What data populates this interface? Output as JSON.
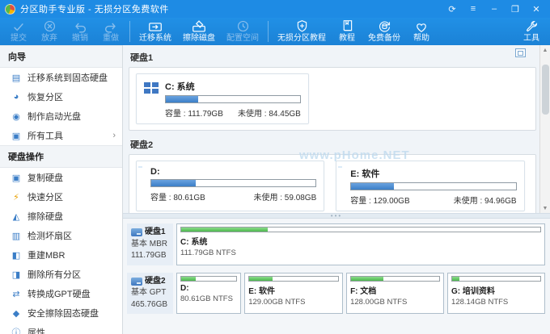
{
  "window": {
    "title": "分区助手专业版 - 无损分区免费软件",
    "controls": {
      "refresh": "⟳",
      "menu": "≡",
      "minimize": "–",
      "maximize": "❐",
      "close": "✕"
    }
  },
  "toolbar": {
    "items": [
      {
        "label": "提交"
      },
      {
        "label": "放弃"
      },
      {
        "label": "撤销"
      },
      {
        "label": "重做"
      },
      {
        "label": "迁移系统"
      },
      {
        "label": "擦除磁盘"
      },
      {
        "label": "配置空间"
      },
      {
        "label": "无损分区教程"
      },
      {
        "label": "教程"
      },
      {
        "label": "免费备份"
      },
      {
        "label": "帮助"
      },
      {
        "label": "工具"
      }
    ]
  },
  "sidebar": {
    "sections": [
      {
        "header": "向导",
        "items": [
          {
            "label": "迁移系统到固态硬盘",
            "glyph": "▤"
          },
          {
            "label": "恢复分区",
            "glyph": "◕"
          },
          {
            "label": "制作启动光盘",
            "glyph": "◉"
          },
          {
            "label": "所有工具",
            "glyph": "▦",
            "chevron": "›"
          }
        ]
      },
      {
        "header": "硬盘操作",
        "items": [
          {
            "label": "复制硬盘",
            "glyph": "▣"
          },
          {
            "label": "快速分区",
            "glyph": "⚡"
          },
          {
            "label": "擦除硬盘",
            "glyph": "◭"
          },
          {
            "label": "检测坏扇区",
            "glyph": "▥"
          },
          {
            "label": "重建MBR",
            "glyph": "◧"
          },
          {
            "label": "删除所有分区",
            "glyph": "◨"
          },
          {
            "label": "转换成GPT硬盘",
            "glyph": "⇄"
          },
          {
            "label": "安全擦除固态硬盘",
            "glyph": "◆"
          },
          {
            "label": "属性",
            "glyph": "ⓘ"
          }
        ]
      }
    ]
  },
  "main": {
    "watermark": "www.pHome.NET",
    "disk1": {
      "name": "硬盘1",
      "partition": {
        "label": "C: 系统",
        "capacity": "容量 : 111.79GB",
        "unused": "未使用 : 84.45GB",
        "used_percent": 24
      }
    },
    "disk2": {
      "name": "硬盘2",
      "partitions": [
        {
          "label": "D:",
          "capacity": "容量 : 80.61GB",
          "unused": "未使用 : 59.08GB",
          "used_percent": 27
        },
        {
          "label": "E: 软件",
          "capacity": "容量 : 129.00GB",
          "unused": "未使用 : 94.96GB",
          "used_percent": 26
        }
      ]
    }
  },
  "bottom": {
    "disk1": {
      "name": "硬盘1",
      "type": "基本 MBR",
      "size": "111.79GB",
      "partitions": [
        {
          "label": "C: 系统",
          "fs": "111.79GB NTFS",
          "used_percent": 24,
          "flex": 112
        }
      ]
    },
    "disk2": {
      "name": "硬盘2",
      "type": "基本 GPT",
      "size": "465.76GB",
      "partitions": [
        {
          "label": "D:",
          "fs": "80.61GB NTFS",
          "used_percent": 27,
          "flex": 81
        },
        {
          "label": "E: 软件",
          "fs": "129.00GB NTFS",
          "used_percent": 26,
          "flex": 129
        },
        {
          "label": "F: 文档",
          "fs": "128.00GB NTFS",
          "used_percent": 37,
          "flex": 128
        },
        {
          "label": "G: 培训资料",
          "fs": "128.14GB NTFS",
          "used_percent": 8,
          "flex": 128
        }
      ]
    }
  },
  "colors": {
    "titlebar": "#1e8be4",
    "accent_blue": "#3c7fc7",
    "used_green": "#4db84d"
  }
}
